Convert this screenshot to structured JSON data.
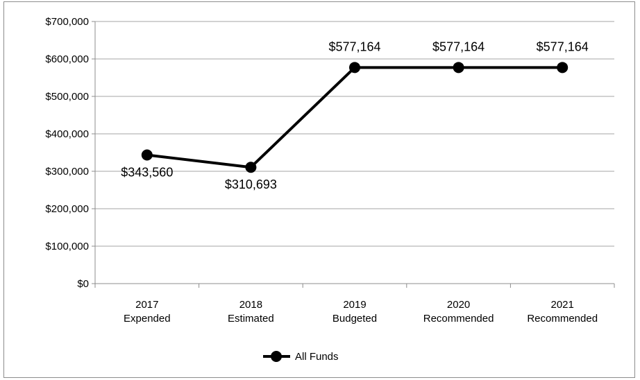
{
  "chart_data": {
    "type": "line",
    "categories": [
      [
        "2017",
        "Expended"
      ],
      [
        "2018",
        "Estimated"
      ],
      [
        "2019",
        "Budgeted"
      ],
      [
        "2020",
        "Recommended"
      ],
      [
        "2021",
        "Recommended"
      ]
    ],
    "series": [
      {
        "name": "All Funds",
        "values": [
          343560,
          310693,
          577164,
          577164,
          577164
        ],
        "data_labels": [
          "$343,560",
          "$310,693",
          "$577,164",
          "$577,164",
          "$577,164"
        ],
        "color": "#000000"
      }
    ],
    "yticks": [
      "$0",
      "$100,000",
      "$200,000",
      "$300,000",
      "$400,000",
      "$500,000",
      "$600,000",
      "$700,000"
    ],
    "ylim": [
      0,
      700000
    ],
    "grid": true,
    "legend_position": "bottom",
    "title": "",
    "xlabel": "",
    "ylabel": ""
  },
  "colors": {
    "gridline": "#a6a6a6",
    "axis": "#8c8c8c",
    "series": "#000000",
    "frame": "#8c8c8c"
  }
}
